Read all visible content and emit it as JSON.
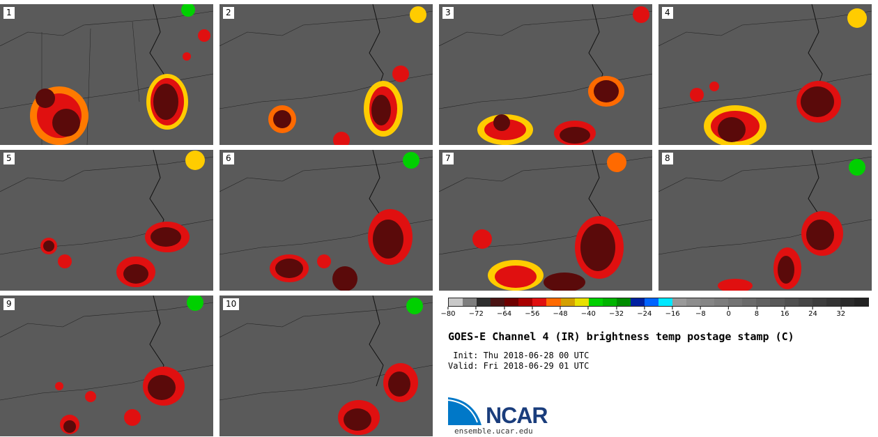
{
  "panels": [
    "1",
    "2",
    "3",
    "4",
    "5",
    "6",
    "7",
    "8",
    "9",
    "10"
  ],
  "colorbar": {
    "colors": [
      "#c8c8c8",
      "#7e7e7e",
      "#2e2e2e",
      "#4a1414",
      "#6e0000",
      "#a80000",
      "#e01010",
      "#ff6a00",
      "#d4a000",
      "#e8e000",
      "#00d000",
      "#00b400",
      "#008c00",
      "#0020a0",
      "#0064ff",
      "#00e8ff",
      "#9a9a9a",
      "#8e8e8e",
      "#858585",
      "#7c7c7c",
      "#737373",
      "#6a6a6a",
      "#616161",
      "#585858",
      "#4f4f4f",
      "#464646",
      "#3d3d3d",
      "#343434",
      "#2b2b2b",
      "#222222"
    ],
    "ticks": [
      "−80",
      "−72",
      "−64",
      "−56",
      "−48",
      "−40",
      "−32",
      "−24",
      "−16",
      "−8",
      "0",
      "8",
      "16",
      "24",
      "32"
    ],
    "tick_values": [
      -80,
      -72,
      -64,
      -56,
      -48,
      -40,
      -32,
      -24,
      -16,
      -8,
      0,
      8,
      16,
      24,
      32
    ],
    "range": [
      -80,
      40
    ]
  },
  "title": "GOES-E Channel 4 (IR) brightness temp postage stamp (C)",
  "init": " Init: Thu 2018-06-28 00 UTC",
  "valid": "Valid: Fri 2018-06-29 01 UTC",
  "logo": {
    "text": "NCAR",
    "url": "ensemble.ucar.edu"
  }
}
